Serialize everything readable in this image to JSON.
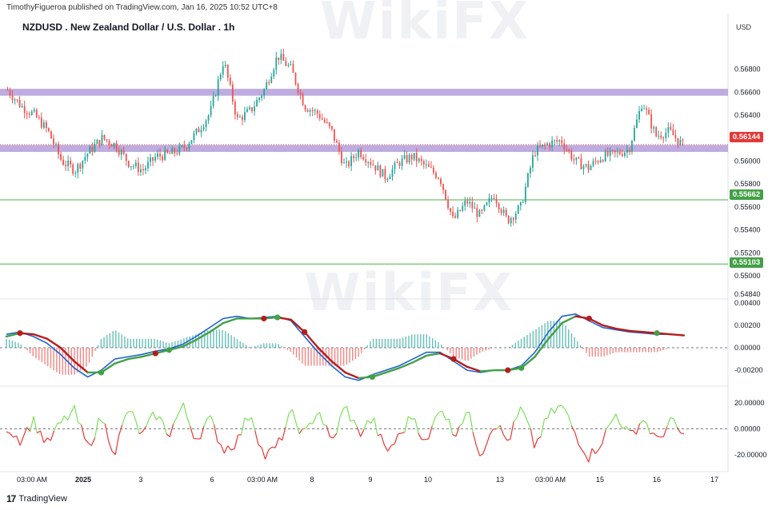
{
  "header": {
    "publisher": "TimothyFigueroa published on TradingView.com, Jan 16, 2025 10:52 UTC+8",
    "title": "NZDUSD . New Zealand Dollar / U.S. Dollar . 1h",
    "currency": "USD"
  },
  "footer": {
    "brand": "TradingView",
    "logo_text": "17"
  },
  "watermark": "WikiFX",
  "colors": {
    "bull": "#26a69a",
    "bear": "#ef5350",
    "zone": "#b39ddb",
    "level_line": "#4caf50",
    "macd_line": "#1e62d0",
    "signal_bull": "#43a047",
    "signal_bear": "#b71c1c",
    "rsi_bull": "#7ee05a",
    "rsi_bear": "#e53935",
    "current_price_tag": "#e53935",
    "level_tag": "#43a047"
  },
  "chart_data": [
    {
      "type": "candlestick",
      "title": "NZDUSD . New Zealand Dollar / U.S. Dollar . 1h",
      "y_axis_ticks": [
        "0.56800",
        "0.56600",
        "0.56400",
        "0.56200",
        "0.56000",
        "0.55800",
        "0.55600",
        "0.55400",
        "0.55200",
        "0.55000",
        "0.54840"
      ],
      "ylim": [
        0.5484,
        0.57
      ],
      "x_axis_ticks": [
        "03:00 AM",
        "2025",
        "3",
        "6",
        "03:00 AM",
        "8",
        "9",
        "10",
        "13",
        "03:00 AM",
        "15",
        "16",
        "17"
      ],
      "current_price": "0.56144",
      "levels": [
        {
          "label": "0.55662",
          "value": 0.55662
        },
        {
          "label": "0.55103",
          "value": 0.55103
        }
      ],
      "zones": [
        {
          "from": 0.5657,
          "to": 0.5663
        },
        {
          "from": 0.5608,
          "to": 0.5614
        }
      ],
      "close_path": [
        0.5662,
        0.5648,
        0.564,
        0.5626,
        0.56,
        0.5592,
        0.5608,
        0.562,
        0.5614,
        0.5598,
        0.5592,
        0.5604,
        0.5606,
        0.5611,
        0.5625,
        0.5642,
        0.5688,
        0.5636,
        0.5644,
        0.5662,
        0.5692,
        0.568,
        0.5648,
        0.5641,
        0.5626,
        0.5594,
        0.5609,
        0.5598,
        0.5586,
        0.5599,
        0.5604,
        0.5595,
        0.5586,
        0.5548,
        0.5565,
        0.5552,
        0.5571,
        0.5548,
        0.556,
        0.5608,
        0.5615,
        0.5618,
        0.56,
        0.5594,
        0.5604,
        0.5606,
        0.561,
        0.5652,
        0.5622,
        0.5626,
        0.5614
      ]
    },
    {
      "type": "line",
      "name": "MACD",
      "y_axis_ticks": [
        "0.00400",
        "0.00200",
        "0.00000",
        "-0.00200"
      ],
      "ylim": [
        -0.0032,
        0.0042
      ],
      "macd": [
        0.0012,
        0.0014,
        0.001,
        0.0004,
        -0.0006,
        -0.0018,
        -0.0026,
        -0.002,
        -0.001,
        -0.0008,
        -0.0006,
        -0.0003,
        -0.0001,
        0.0003,
        0.001,
        0.0018,
        0.0026,
        0.0028,
        0.0026,
        0.0027,
        0.0028,
        0.0024,
        0.001,
        -0.0004,
        -0.0016,
        -0.0026,
        -0.0029,
        -0.0024,
        -0.002,
        -0.0016,
        -0.001,
        -0.0004,
        -0.0004,
        -0.0012,
        -0.002,
        -0.0022,
        -0.002,
        -0.002,
        -0.0016,
        -0.0004,
        0.0014,
        0.0028,
        0.003,
        0.0024,
        0.0018,
        0.0016,
        0.0014,
        0.0013,
        0.0012,
        0.0012,
        0.0011
      ],
      "signal": [
        0.001,
        0.0013,
        0.0012,
        0.0008,
        0.0,
        -0.0012,
        -0.0022,
        -0.0022,
        -0.0014,
        -0.001,
        -0.0008,
        -0.0005,
        -0.0002,
        0.0001,
        0.0007,
        0.0014,
        0.0022,
        0.0026,
        0.0026,
        0.0026,
        0.0027,
        0.0025,
        0.0014,
        0.0,
        -0.0012,
        -0.0022,
        -0.0027,
        -0.0026,
        -0.0022,
        -0.0018,
        -0.0013,
        -0.0007,
        -0.0005,
        -0.001,
        -0.0017,
        -0.0021,
        -0.002,
        -0.002,
        -0.0018,
        -0.0008,
        0.0008,
        0.0022,
        0.0028,
        0.0026,
        0.002,
        0.0017,
        0.0015,
        0.0014,
        0.0013,
        0.0012,
        0.0011
      ],
      "crossover_dots": [
        {
          "index": 1,
          "kind": "bear"
        },
        {
          "index": 7,
          "kind": "bull"
        },
        {
          "index": 11,
          "kind": "bear"
        },
        {
          "index": 12,
          "kind": "bull"
        },
        {
          "index": 19,
          "kind": "bear"
        },
        {
          "index": 20,
          "kind": "bull"
        },
        {
          "index": 22,
          "kind": "bear"
        },
        {
          "index": 27,
          "kind": "bull"
        },
        {
          "index": 33,
          "kind": "bear"
        },
        {
          "index": 37,
          "kind": "bear"
        },
        {
          "index": 38,
          "kind": "bull"
        },
        {
          "index": 43,
          "kind": "bear"
        },
        {
          "index": 48,
          "kind": "bull"
        }
      ]
    },
    {
      "type": "line",
      "name": "Oscillator",
      "y_axis_ticks": [
        "20.00000",
        "0.00000",
        "-20.00000"
      ],
      "ylim": [
        -30,
        30
      ],
      "values": [
        2,
        -8,
        6,
        -12,
        4,
        14,
        -15,
        9,
        -18,
        16,
        -6,
        12,
        -4,
        18,
        -8,
        8,
        -16,
        -10,
        14,
        -22,
        -14,
        12,
        -6,
        16,
        -12,
        18,
        -4,
        8,
        -18,
        -6,
        12,
        -14,
        20,
        -4,
        14,
        -20,
        6,
        -10,
        16,
        -14,
        10,
        18,
        -4,
        -22,
        -8,
        12,
        -6,
        8,
        -10,
        6,
        -6
      ],
      "baseline": 0
    }
  ]
}
